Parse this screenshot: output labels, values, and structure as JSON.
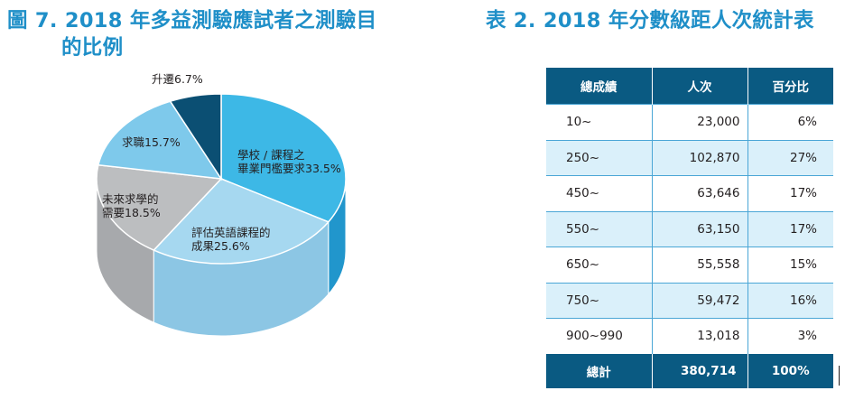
{
  "figure_title_line1": "圖 7. 2018 年多益測驗應試者之測驗目",
  "figure_title_line2": "的比例",
  "table_title": "表 2. 2018 年分數級距人次統計表",
  "chart_data": [
    {
      "type": "pie",
      "title": "圖 7. 2018 年多益測驗應試者之測驗目的比例",
      "slices": [
        {
          "label": "學校 / 課程之畢業門檻要求",
          "value": 33.5,
          "label_text": "33.5%",
          "color": "#3db8e6",
          "side_color": "#2196cc"
        },
        {
          "label": "評估英語課程的成果",
          "value": 25.6,
          "label_text": "25.6%",
          "color": "#a6d8f0",
          "side_color": "#8cc6e4"
        },
        {
          "label": "未來求學的需要",
          "value": 18.5,
          "label_text": "18.5%",
          "color": "#bcbec0",
          "side_color": "#a7a9ac"
        },
        {
          "label": "求職",
          "value": 15.7,
          "label_text": "15.7%",
          "color": "#7ec9eb",
          "side_color": "#66b6dd"
        },
        {
          "label": "升遷",
          "value": 6.7,
          "label_text": "6.7%",
          "color": "#0b4f73",
          "side_color": "#083c58"
        }
      ],
      "label_lines": [
        [
          "學校 / 課程之",
          "畢業門檻要求33.5%"
        ],
        [
          "評估英語課程的",
          "成果25.6%"
        ],
        [
          "未來求學的",
          "需要18.5%"
        ],
        [
          "求職15.7%"
        ],
        [
          "升遷6.7%"
        ]
      ]
    },
    {
      "type": "table",
      "title": "表 2. 2018 年分數級距人次統計表",
      "columns": [
        "總成績",
        "人次",
        "百分比"
      ],
      "rows": [
        [
          "10~",
          "23,000",
          "6%"
        ],
        [
          "250~",
          "102,870",
          "27%"
        ],
        [
          "450~",
          "63,646",
          "17%"
        ],
        [
          "550~",
          "63,150",
          "17%"
        ],
        [
          "650~",
          "55,558",
          "15%"
        ],
        [
          "750~",
          "59,472",
          "16%"
        ],
        [
          "900~990",
          "13,018",
          "3%"
        ]
      ],
      "total": [
        "總計",
        "380,714",
        "100%"
      ]
    }
  ]
}
